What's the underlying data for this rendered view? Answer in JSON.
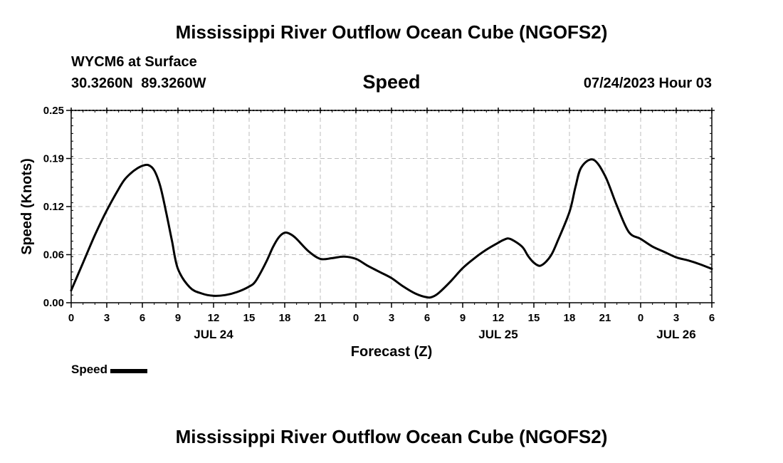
{
  "page": {
    "title": "Mississippi River Outflow Ocean Cube (NGOFS2)",
    "title_repeat": "Mississippi River Outflow Ocean Cube (NGOFS2)",
    "station": "WYCM6 at Surface",
    "coords": "30.3260N 89.3260W",
    "datetime": "07/24/2023 Hour 03"
  },
  "legend": {
    "label": "Speed"
  },
  "chart_data": {
    "type": "line",
    "title": "Speed",
    "xlabel": "Forecast (Z)",
    "ylabel": "Speed (Knots)",
    "x_unit": "hours from 2023-07-24 00Z",
    "xlim": [
      0,
      54
    ],
    "ylim": [
      0,
      0.25
    ],
    "y_ticks": [
      "0.00",
      "0.06",
      "0.12",
      "0.19",
      "0.25"
    ],
    "y_tick_values": [
      0,
      0.0625,
      0.125,
      0.1875,
      0.25
    ],
    "x_ticks": [
      0,
      3,
      6,
      9,
      12,
      15,
      18,
      21,
      24,
      27,
      30,
      33,
      36,
      39,
      42,
      45,
      48,
      51,
      54
    ],
    "x_tick_labels": [
      "0",
      "3",
      "6",
      "9",
      "12",
      "15",
      "18",
      "21",
      "0",
      "3",
      "6",
      "9",
      "12",
      "15",
      "18",
      "21",
      "0",
      "3",
      "6"
    ],
    "date_labels": [
      {
        "label": "JUL 24",
        "x": 12
      },
      {
        "label": "JUL 25",
        "x": 36
      },
      {
        "label": "JUL 26",
        "x": 51
      }
    ],
    "grid": true,
    "legend_position": "bottom-left",
    "series": [
      {
        "name": "Speed",
        "color": "#000000",
        "x": [
          0,
          1,
          2,
          3,
          4,
          4.5,
          5,
          5.5,
          6,
          6.5,
          7,
          7.5,
          8,
          8.5,
          9,
          10,
          11,
          12,
          13,
          14,
          15,
          15.5,
          16,
          16.5,
          17,
          17.5,
          18,
          18.5,
          19,
          20,
          21,
          22,
          23,
          24,
          25,
          26,
          27,
          28,
          29,
          30,
          30.5,
          31,
          32,
          33,
          34,
          35,
          36,
          36.5,
          37,
          38,
          38.5,
          39,
          39.5,
          40,
          40.5,
          41,
          42,
          42.5,
          43,
          44,
          45,
          46,
          47,
          48,
          49,
          50,
          51,
          52,
          53,
          54
        ],
        "y": [
          0.016,
          0.052,
          0.088,
          0.12,
          0.148,
          0.16,
          0.168,
          0.174,
          0.178,
          0.179,
          0.172,
          0.152,
          0.118,
          0.08,
          0.044,
          0.02,
          0.012,
          0.009,
          0.01,
          0.014,
          0.021,
          0.027,
          0.04,
          0.055,
          0.072,
          0.085,
          0.091,
          0.089,
          0.083,
          0.067,
          0.057,
          0.058,
          0.06,
          0.057,
          0.048,
          0.04,
          0.032,
          0.021,
          0.012,
          0.007,
          0.008,
          0.013,
          0.028,
          0.045,
          0.058,
          0.069,
          0.078,
          0.082,
          0.083,
          0.073,
          0.061,
          0.052,
          0.048,
          0.053,
          0.063,
          0.08,
          0.118,
          0.15,
          0.176,
          0.186,
          0.165,
          0.126,
          0.092,
          0.083,
          0.073,
          0.066,
          0.059,
          0.055,
          0.05,
          0.044
        ]
      }
    ]
  }
}
